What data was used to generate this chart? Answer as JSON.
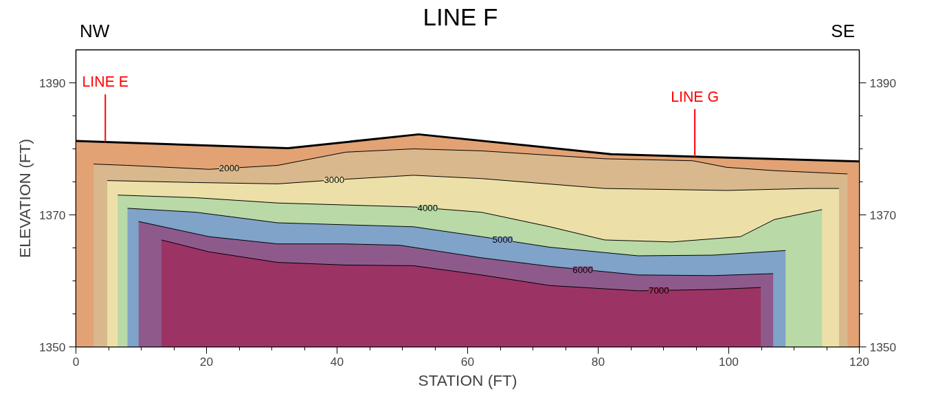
{
  "chart_data": {
    "type": "area",
    "title": "LINE F",
    "xlabel": "STATION (FT)",
    "ylabel": "ELEVATION (FT)",
    "annotations": [
      "NW",
      "SE"
    ],
    "ref_lines": [
      {
        "axis": "x",
        "value": 4.5,
        "label": "LINE E",
        "color": "#ff0000"
      },
      {
        "axis": "x",
        "value": 94.8,
        "label": "LINE G",
        "color": "#ff0000"
      }
    ],
    "xlim": [
      0,
      120
    ],
    "xticks": [
      0,
      20,
      40,
      60,
      80,
      100,
      120
    ],
    "ylim": [
      1350,
      1395
    ],
    "yticks": [
      1350,
      1370,
      1390
    ],
    "y2lim": [
      1350,
      1395
    ],
    "y2ticks": [
      1350,
      1370,
      1390
    ],
    "grid": false,
    "series": [
      {
        "color": "#e2a274",
        "x": [
          0,
          32.5,
          52.5,
          82,
          120
        ],
        "values": [
          1381.2,
          1380.1,
          1382.2,
          1379.2,
          1378.1
        ]
      },
      {
        "name": "2000",
        "color": "#d8b88c",
        "x": [
          2.7,
          7.9,
          20.4,
          30.9,
          41.3,
          51.7,
          62.1,
          81,
          94.5,
          99.7,
          107,
          118.2
        ],
        "values": [
          1377.7,
          1377.5,
          1376.9,
          1377.5,
          1379.5,
          1380.0,
          1379.7,
          1378.5,
          1378.2,
          1377.2,
          1376.7,
          1376.2
        ]
      },
      {
        "name": "3000",
        "color": "#ece0a8",
        "x": [
          4.8,
          18.4,
          30.9,
          41.3,
          51.7,
          62.1,
          81,
          99.7,
          112.2,
          116.9
        ],
        "values": [
          1375.2,
          1374.9,
          1374.7,
          1375.4,
          1376.0,
          1375.5,
          1374.0,
          1373.7,
          1374.0,
          1374.0
        ]
      },
      {
        "name": "4000",
        "color": "#b9d9a6",
        "x": [
          6.4,
          18.4,
          30.9,
          41.3,
          51.7,
          62.1,
          72.6,
          81,
          91.3,
          101.8,
          107,
          114.3
        ],
        "values": [
          1373.0,
          1372.6,
          1371.8,
          1371.5,
          1371.2,
          1370.4,
          1368.2,
          1366.2,
          1365.9,
          1366.7,
          1369.3,
          1370.8
        ]
      },
      {
        "name": "5000",
        "color": "#7fa3c9",
        "x": [
          7.9,
          18.4,
          30.9,
          41.3,
          51.7,
          62.1,
          72.6,
          86.1,
          97.6,
          108.7
        ],
        "values": [
          1371.0,
          1370.4,
          1368.8,
          1368.5,
          1368.2,
          1366.7,
          1365.1,
          1363.8,
          1363.9,
          1364.6
        ]
      },
      {
        "name": "6000",
        "color": "#8e5a8c",
        "x": [
          9.6,
          20.4,
          30.9,
          41.3,
          49.6,
          62.1,
          72.6,
          86.1,
          97.6,
          106.8
        ],
        "values": [
          1369.0,
          1366.7,
          1365.6,
          1365.6,
          1365.4,
          1363.5,
          1362.2,
          1360.9,
          1360.8,
          1361.1
        ]
      },
      {
        "name": "7000",
        "color": "#9b3464",
        "x": [
          13.1,
          20.4,
          30.9,
          41.3,
          51.7,
          62.1,
          72.6,
          86.1,
          97.6,
          104.9
        ],
        "values": [
          1366.2,
          1364.4,
          1362.8,
          1362.4,
          1362.3,
          1360.9,
          1359.3,
          1358.5,
          1358.7,
          1359.0
        ]
      }
    ]
  }
}
